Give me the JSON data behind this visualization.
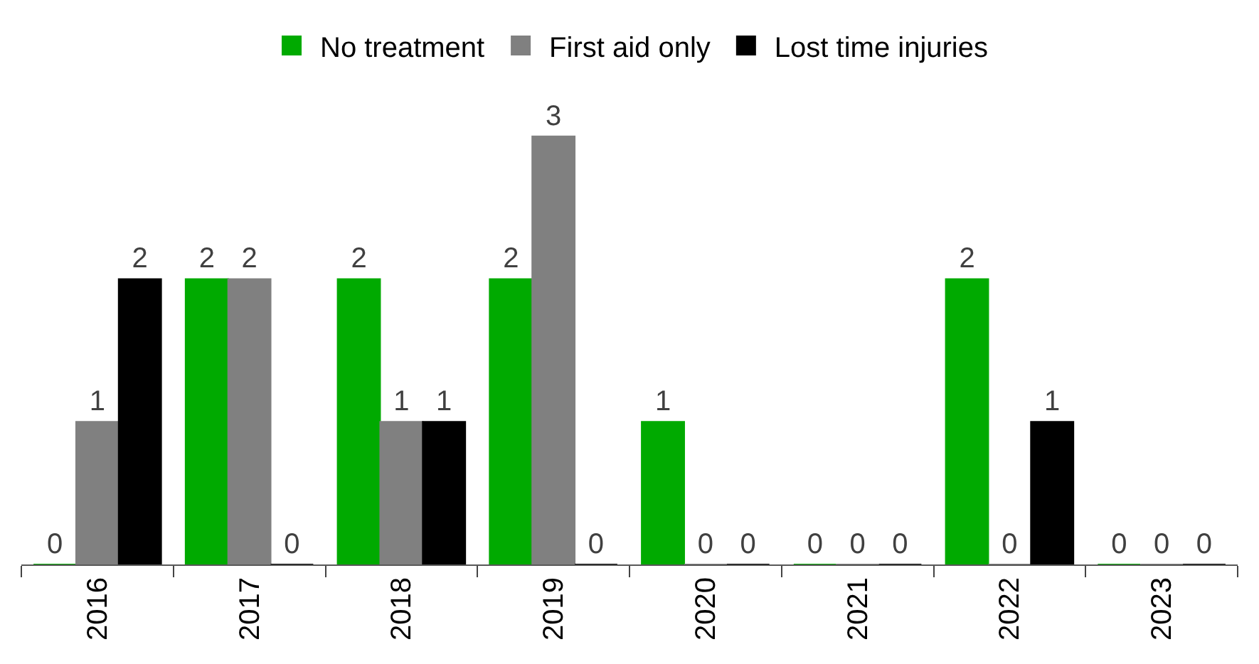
{
  "chart_data": {
    "type": "bar",
    "categories": [
      "2016",
      "2017",
      "2018",
      "2019",
      "2020",
      "2021",
      "2022",
      "2023"
    ],
    "series": [
      {
        "name": "No treatment",
        "color": "#00aa00",
        "values": [
          0,
          2,
          2,
          2,
          1,
          0,
          2,
          0
        ]
      },
      {
        "name": "First aid only",
        "color": "#808080",
        "values": [
          1,
          2,
          1,
          3,
          0,
          0,
          0,
          0
        ]
      },
      {
        "name": "Lost time injuries",
        "color": "#000000",
        "values": [
          2,
          0,
          1,
          0,
          0,
          0,
          1,
          0
        ]
      }
    ],
    "data_labels": true,
    "legend": "top"
  }
}
